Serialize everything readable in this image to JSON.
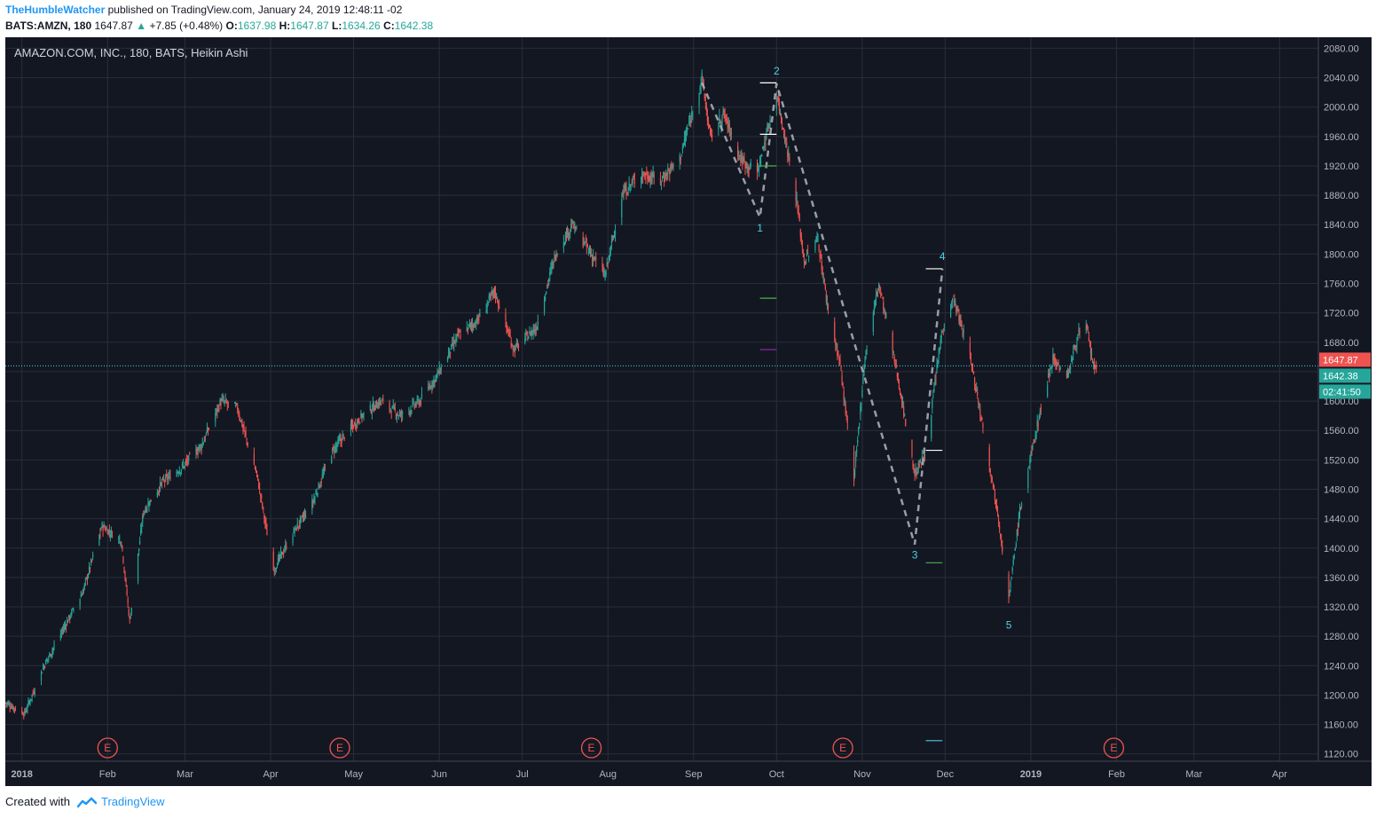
{
  "header": {
    "author": "TheHumbleWatcher",
    "published_text": "published on TradingView.com, January 24, 2019 12:48:11 -02",
    "symbol": "BATS:AMZN, 180",
    "last": "1647.87",
    "change": "+7.85 (+0.48%)",
    "o_label": "O:",
    "o_val": "1637.98",
    "h_label": "H:",
    "h_val": "1647.87",
    "l_label": "L:",
    "l_val": "1634.26",
    "c_label": "C:",
    "c_val": "1642.38"
  },
  "footer": {
    "created_with": "Created with",
    "brand": "TradingView"
  },
  "colors": {
    "background": "#131722",
    "grid": "#2a2e39",
    "up": "#26a69a",
    "down": "#ef5350",
    "price_tag": "#ef5350",
    "close_tag": "#26a69a",
    "wave_label": "#4dd0e1",
    "earnings": "#ef5350"
  },
  "chart_data": {
    "type": "candlestick",
    "title": "AMAZON.COM, INC., 180, BATS, Heikin Ashi",
    "x_tick_labels": [
      "2018",
      "Feb",
      "Mar",
      "Apr",
      "May",
      "Jun",
      "Jul",
      "Aug",
      "Sep",
      "Oct",
      "Nov",
      "Dec",
      "2019",
      "Feb",
      "Mar",
      "Apr"
    ],
    "y_ticks": [
      1120,
      1160,
      1200,
      1240,
      1280,
      1320,
      1360,
      1400,
      1440,
      1480,
      1520,
      1560,
      1600,
      1640,
      1680,
      1720,
      1760,
      1800,
      1840,
      1880,
      1920,
      1960,
      2000,
      2040,
      2080
    ],
    "ylim": [
      1110,
      2095
    ],
    "xlim": [
      "2017-12-26",
      "2019-04-15"
    ],
    "grid": true,
    "price_path": [
      [
        "2017-12-26",
        1190
      ],
      [
        "2018-01-02",
        1175
      ],
      [
        "2018-01-09",
        1240
      ],
      [
        "2018-01-16",
        1290
      ],
      [
        "2018-01-23",
        1340
      ],
      [
        "2018-01-30",
        1430
      ],
      [
        "2018-02-06",
        1410
      ],
      [
        "2018-02-09",
        1300
      ],
      [
        "2018-02-14",
        1450
      ],
      [
        "2018-02-21",
        1490
      ],
      [
        "2018-02-28",
        1510
      ],
      [
        "2018-03-07",
        1540
      ],
      [
        "2018-03-14",
        1600
      ],
      [
        "2018-03-20",
        1590
      ],
      [
        "2018-03-27",
        1500
      ],
      [
        "2018-04-02",
        1370
      ],
      [
        "2018-04-09",
        1420
      ],
      [
        "2018-04-16",
        1460
      ],
      [
        "2018-04-23",
        1530
      ],
      [
        "2018-04-27",
        1550
      ],
      [
        "2018-05-04",
        1580
      ],
      [
        "2018-05-11",
        1600
      ],
      [
        "2018-05-18",
        1580
      ],
      [
        "2018-05-25",
        1600
      ],
      [
        "2018-06-01",
        1640
      ],
      [
        "2018-06-08",
        1690
      ],
      [
        "2018-06-15",
        1710
      ],
      [
        "2018-06-21",
        1750
      ],
      [
        "2018-06-28",
        1670
      ],
      [
        "2018-07-06",
        1700
      ],
      [
        "2018-07-13",
        1800
      ],
      [
        "2018-07-19",
        1840
      ],
      [
        "2018-07-26",
        1800
      ],
      [
        "2018-07-31",
        1770
      ],
      [
        "2018-08-06",
        1880
      ],
      [
        "2018-08-13",
        1910
      ],
      [
        "2018-08-20",
        1900
      ],
      [
        "2018-08-27",
        1930
      ],
      [
        "2018-09-04",
        2040
      ],
      [
        "2018-09-07",
        1960
      ],
      [
        "2018-09-12",
        1990
      ],
      [
        "2018-09-18",
        1930
      ],
      [
        "2018-09-24",
        1910
      ],
      [
        "2018-10-01",
        2020
      ],
      [
        "2018-10-08",
        1880
      ],
      [
        "2018-10-11",
        1790
      ],
      [
        "2018-10-16",
        1820
      ],
      [
        "2018-10-19",
        1740
      ],
      [
        "2018-10-24",
        1650
      ],
      [
        "2018-10-29",
        1490
      ],
      [
        "2018-11-02",
        1660
      ],
      [
        "2018-11-07",
        1760
      ],
      [
        "2018-11-14",
        1630
      ],
      [
        "2018-11-20",
        1500
      ],
      [
        "2018-11-24",
        1530
      ],
      [
        "2018-11-30",
        1700
      ],
      [
        "2018-12-04",
        1740
      ],
      [
        "2018-12-10",
        1660
      ],
      [
        "2018-12-14",
        1580
      ],
      [
        "2018-12-20",
        1450
      ],
      [
        "2018-12-24",
        1330
      ],
      [
        "2018-12-28",
        1450
      ],
      [
        "2019-01-04",
        1580
      ],
      [
        "2019-01-09",
        1660
      ],
      [
        "2019-01-14",
        1630
      ],
      [
        "2019-01-18",
        1690
      ],
      [
        "2019-01-21",
        1700
      ],
      [
        "2019-01-24",
        1642
      ]
    ],
    "elliott_wave": {
      "labels": [
        {
          "label": "1",
          "date": "2018-09-25",
          "value": 1850
        },
        {
          "label": "2",
          "date": "2018-10-01",
          "value": 2032
        },
        {
          "label": "3",
          "date": "2018-11-20",
          "value": 1405
        },
        {
          "label": "4",
          "date": "2018-11-30",
          "value": 1780
        },
        {
          "label": "5",
          "date": "2018-12-24",
          "value": 1310
        }
      ],
      "path": [
        [
          "2018-09-04",
          2033
        ],
        [
          "2018-09-25",
          1850
        ],
        [
          "2018-10-01",
          2032
        ],
        [
          "2018-11-20",
          1405
        ],
        [
          "2018-11-30",
          1780
        ]
      ],
      "levels": [
        {
          "date_from": "2018-09-25",
          "date_to": "2018-10-01",
          "value": 2033,
          "color": "#ffffff"
        },
        {
          "date_from": "2018-09-25",
          "date_to": "2018-10-01",
          "value": 1963,
          "color": "#ffffff"
        },
        {
          "date_from": "2018-09-25",
          "date_to": "2018-10-01",
          "value": 1920,
          "color": "#4caf50"
        },
        {
          "date_from": "2018-09-25",
          "date_to": "2018-10-01",
          "value": 1740,
          "color": "#4caf50"
        },
        {
          "date_from": "2018-09-25",
          "date_to": "2018-10-01",
          "value": 1670,
          "color": "#9c27b0"
        },
        {
          "date_from": "2018-11-24",
          "date_to": "2018-11-30",
          "value": 1780,
          "color": "#ffffff"
        },
        {
          "date_from": "2018-11-24",
          "date_to": "2018-11-30",
          "value": 1533,
          "color": "#ffffff"
        },
        {
          "date_from": "2018-11-24",
          "date_to": "2018-11-30",
          "value": 1380,
          "color": "#4caf50"
        },
        {
          "date_from": "2018-11-24",
          "date_to": "2018-11-30",
          "value": 1138,
          "color": "#4dd0e1"
        }
      ]
    },
    "earnings_markers": {
      "label": "E",
      "dates": [
        "2018-02-01",
        "2018-04-26",
        "2018-07-26",
        "2018-10-25",
        "2019-01-31"
      ]
    },
    "last_price": 1647.87,
    "last_price_label": "1647.87",
    "close_label": "1642.38",
    "countdown_label": "02:41:50"
  }
}
